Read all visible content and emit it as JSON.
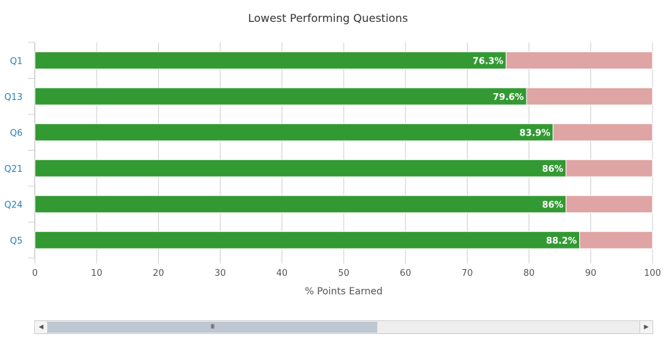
{
  "chart_data": {
    "type": "bar",
    "orientation": "horizontal",
    "stacked": true,
    "title": "Lowest Performing Questions",
    "xlabel": "% Points Earned",
    "ylabel": "",
    "categories": [
      "Q1",
      "Q13",
      "Q6",
      "Q21",
      "Q24",
      "Q5"
    ],
    "values": [
      76.3,
      79.6,
      83.9,
      86,
      86,
      88.2
    ],
    "data_labels": [
      "76.3%",
      "79.6%",
      "83.9%",
      "86%",
      "86%",
      "88.2%"
    ],
    "remainder": [
      23.7,
      20.4,
      16.1,
      14,
      14,
      11.8
    ],
    "xlim": [
      0,
      100
    ],
    "xticks": [
      0,
      10,
      20,
      30,
      40,
      50,
      60,
      70,
      80,
      90,
      100
    ],
    "grid": true,
    "colors": {
      "earned": "#339933",
      "remainder": "#dfa4a4",
      "grid": "#cccccc",
      "category_text": "#2a7fb8"
    }
  },
  "scrollbar": {
    "thumb_grip": "III",
    "left_arrow": "◀",
    "right_arrow": "▶"
  }
}
